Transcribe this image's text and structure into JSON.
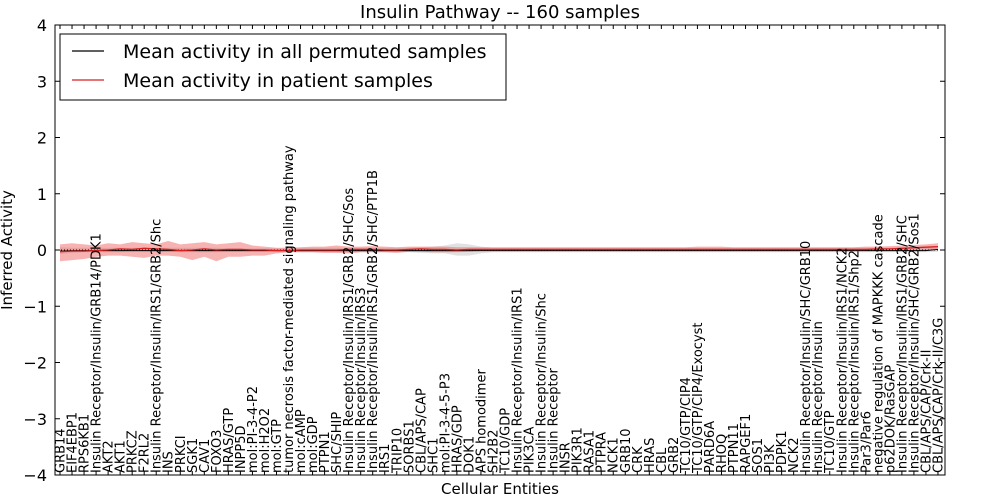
{
  "chart_data": {
    "type": "line",
    "title": "Insulin Pathway -- 160 samples",
    "xlabel": "Cellular Entities",
    "ylabel": "Inferred Activity",
    "ylim": [
      -4,
      4
    ],
    "yticks": [
      4,
      3,
      2,
      1,
      0,
      -1,
      -2,
      -3,
      -4
    ],
    "ytick_labels": [
      "4",
      "3",
      "2",
      "1",
      "0",
      "−1",
      "−2",
      "−3",
      "−4"
    ],
    "legend": {
      "placement": "top-left",
      "entries": [
        {
          "label": "Mean activity in all permuted samples",
          "color": "#000000"
        },
        {
          "label": "Mean activity in patient samples",
          "color": "#d62020"
        }
      ]
    },
    "categories": [
      "GRB14",
      "EIF4EBP1",
      "RPS6KB1",
      "Insulin Receptor/Insulin/GRB14/PDK1",
      "AKT2",
      "AKT1",
      "PRKCZ",
      "F2RL2",
      "Insulin Receptor/Insulin/IRS1/GRB2/Shc",
      "INS",
      "PRKCI",
      "SGK1",
      "CAV1",
      "FOXO3",
      "HRAS/GTP",
      "INPP5D",
      "mol:PI-3-4-P2",
      "mol:H2O2",
      "mol:GTP",
      "tumor necrosis factor-mediated signaling pathway",
      "mol:cAMP",
      "mol:GDP",
      "PTPN1",
      "SHC/SHIP",
      "Insulin Receptor/Insulin/IRS1/GRB2/SHC/Sos",
      "Insulin Receptor/Insulin/IRS3",
      "Insulin Receptor/Insulin/IRS1/GRB2/SHC/PTP1B",
      "IRS1",
      "TRIP10",
      "SORBS1",
      "CBL/APS/CAP",
      "SHC1",
      "mol:PI-3-4-5-P3",
      "HRAS/GDP",
      "DOK1",
      "APS homodimer",
      "SH2B2",
      "TC10/GDP",
      "Insulin Receptor/Insulin/IRS1",
      "PIK3CA",
      "Insulin Receptor/Insulin/Shc",
      "Insulin Receptor",
      "INSR",
      "PIK3R1",
      "RASA1",
      "PTPRA",
      "NCK1",
      "GRB10",
      "CRK",
      "HRAS",
      "CBL",
      "GRB2",
      "TC10/GTP/CIP4",
      "TC10/GTP/CIP4/Exocyst",
      "PARD6A",
      "RHOQ",
      "PTPN11",
      "RAPGEF1",
      "SOS1",
      "PI3K",
      "PDPK1",
      "NCK2",
      "Insulin Receptor/Insulin/SHC/GRB10",
      "Insulin Receptor/Insulin",
      "TC10/GTP",
      "Insulin Receptor/Insulin/IRS1/NCK2",
      "Insulin Receptor/Insulin/IRS1/Shp2",
      "Par3/Par6",
      "negative regulation of MAPKKK cascade",
      "p62DOK/RasGAP",
      "Insulin Receptor/Insulin/IRS1/GRB2/SHC",
      "Insulin Receptor/Insulin/SHC/GRB2/Sos1",
      "CBL/APS/CAP/Crk-II",
      "CBL/APS/CAP/Crk-II/C3G"
    ],
    "series": [
      {
        "name": "Mean activity in all permuted samples",
        "color": "#000000",
        "values": [
          -0.02,
          -0.01,
          -0.01,
          -0.01,
          -0.01,
          -0.01,
          -0.01,
          -0.01,
          -0.01,
          -0.01,
          -0.01,
          -0.01,
          -0.01,
          -0.01,
          -0.01,
          -0.01,
          -0.01,
          -0.01,
          -0.01,
          -0.01,
          -0.01,
          -0.01,
          -0.01,
          -0.01,
          -0.01,
          -0.01,
          -0.01,
          -0.01,
          -0.01,
          -0.01,
          -0.01,
          -0.01,
          -0.01,
          -0.01,
          -0.01,
          -0.01,
          -0.01,
          -0.01,
          -0.01,
          -0.01,
          -0.01,
          -0.01,
          -0.01,
          -0.01,
          -0.01,
          -0.01,
          -0.01,
          -0.01,
          -0.01,
          -0.01,
          -0.01,
          -0.01,
          -0.01,
          -0.01,
          -0.01,
          -0.01,
          -0.01,
          -0.01,
          -0.01,
          -0.01,
          -0.01,
          -0.01,
          -0.01,
          -0.01,
          -0.01,
          -0.01,
          -0.01,
          -0.01,
          -0.01,
          -0.01,
          -0.01,
          -0.01,
          -0.01,
          0.01
        ],
        "band_lower": [
          -0.07,
          -0.05,
          -0.04,
          -0.04,
          -0.04,
          -0.04,
          -0.03,
          -0.03,
          -0.03,
          -0.03,
          -0.04,
          -0.04,
          -0.04,
          -0.04,
          -0.03,
          -0.03,
          -0.03,
          -0.03,
          -0.03,
          -0.03,
          -0.04,
          -0.04,
          -0.04,
          -0.04,
          -0.04,
          -0.04,
          -0.04,
          -0.04,
          -0.04,
          -0.04,
          -0.05,
          -0.06,
          -0.06,
          -0.1,
          -0.1,
          -0.06,
          -0.04,
          -0.04,
          -0.04,
          -0.04,
          -0.04,
          -0.04,
          -0.04,
          -0.04,
          -0.04,
          -0.04,
          -0.04,
          -0.04,
          -0.04,
          -0.04,
          -0.04,
          -0.04,
          -0.04,
          -0.04,
          -0.04,
          -0.04,
          -0.04,
          -0.04,
          -0.04,
          -0.04,
          -0.04,
          -0.04,
          -0.04,
          -0.04,
          -0.04,
          -0.04,
          -0.04,
          -0.04,
          -0.04,
          -0.04,
          -0.04,
          -0.04,
          -0.04,
          -0.03
        ],
        "band_upper": [
          0.05,
          0.04,
          0.04,
          0.04,
          0.04,
          0.04,
          0.04,
          0.04,
          0.04,
          0.04,
          0.04,
          0.04,
          0.04,
          0.04,
          0.03,
          0.03,
          0.03,
          0.03,
          0.03,
          0.03,
          0.04,
          0.04,
          0.04,
          0.04,
          0.04,
          0.04,
          0.04,
          0.04,
          0.04,
          0.04,
          0.05,
          0.06,
          0.08,
          0.12,
          0.1,
          0.06,
          0.04,
          0.04,
          0.04,
          0.04,
          0.04,
          0.04,
          0.04,
          0.04,
          0.04,
          0.04,
          0.04,
          0.04,
          0.04,
          0.04,
          0.04,
          0.04,
          0.04,
          0.04,
          0.04,
          0.04,
          0.04,
          0.04,
          0.04,
          0.04,
          0.04,
          0.04,
          0.04,
          0.04,
          0.04,
          0.04,
          0.04,
          0.04,
          0.04,
          0.04,
          0.04,
          0.04,
          0.04,
          0.06
        ]
      },
      {
        "name": "Mean activity in patient samples",
        "color": "#d62020",
        "values": [
          -0.03,
          -0.02,
          -0.02,
          -0.01,
          0.0,
          0.02,
          0.01,
          0.03,
          0.02,
          0.01,
          -0.01,
          0.0,
          0.02,
          0.0,
          0.01,
          0.01,
          0.0,
          0.0,
          -0.01,
          -0.01,
          0.0,
          0.0,
          0.0,
          0.0,
          0.01,
          0.01,
          0.01,
          0.0,
          0.0,
          0.01,
          0.02,
          0.01,
          0.01,
          0.0,
          0.01,
          0.01,
          0.01,
          0.01,
          0.01,
          0.01,
          0.01,
          0.01,
          0.01,
          0.01,
          0.01,
          0.01,
          0.01,
          0.01,
          0.01,
          0.01,
          0.01,
          0.01,
          0.01,
          0.01,
          0.01,
          0.01,
          0.01,
          0.01,
          0.01,
          0.01,
          0.01,
          0.01,
          0.01,
          0.01,
          0.01,
          0.01,
          0.01,
          0.01,
          0.02,
          0.02,
          0.03,
          0.04,
          0.05,
          0.06
        ],
        "band_lower": [
          -0.2,
          -0.18,
          -0.16,
          -0.12,
          -0.1,
          -0.1,
          -0.12,
          -0.14,
          -0.1,
          -0.1,
          -0.12,
          -0.18,
          -0.12,
          -0.2,
          -0.12,
          -0.12,
          -0.1,
          -0.1,
          -0.06,
          -0.04,
          -0.04,
          -0.04,
          -0.05,
          -0.05,
          -0.06,
          -0.04,
          -0.04,
          -0.04,
          -0.05,
          -0.03,
          -0.03,
          -0.04,
          -0.04,
          -0.04,
          -0.03,
          -0.02,
          -0.02,
          -0.02,
          -0.02,
          -0.02,
          -0.02,
          -0.02,
          -0.02,
          -0.02,
          -0.02,
          -0.02,
          -0.02,
          -0.02,
          -0.02,
          -0.02,
          -0.02,
          -0.02,
          -0.02,
          -0.02,
          -0.02,
          -0.02,
          -0.02,
          -0.02,
          -0.02,
          -0.02,
          -0.02,
          -0.02,
          -0.02,
          -0.02,
          -0.02,
          -0.02,
          -0.02,
          -0.02,
          -0.02,
          -0.02,
          -0.02,
          -0.01,
          0.0,
          0.0
        ],
        "band_upper": [
          0.1,
          0.12,
          0.1,
          0.08,
          0.12,
          0.1,
          0.14,
          0.12,
          0.1,
          0.16,
          0.1,
          0.12,
          0.14,
          0.1,
          0.12,
          0.14,
          0.08,
          0.06,
          0.04,
          0.04,
          0.05,
          0.06,
          0.06,
          0.08,
          0.06,
          0.06,
          0.07,
          0.06,
          0.05,
          0.06,
          0.06,
          0.06,
          0.06,
          0.05,
          0.05,
          0.05,
          0.05,
          0.05,
          0.05,
          0.05,
          0.05,
          0.05,
          0.05,
          0.05,
          0.05,
          0.05,
          0.05,
          0.05,
          0.05,
          0.05,
          0.05,
          0.05,
          0.05,
          0.06,
          0.06,
          0.06,
          0.05,
          0.05,
          0.05,
          0.05,
          0.05,
          0.05,
          0.05,
          0.05,
          0.05,
          0.05,
          0.05,
          0.06,
          0.06,
          0.07,
          0.08,
          0.09,
          0.1,
          0.12
        ]
      }
    ],
    "zero_line": true
  }
}
